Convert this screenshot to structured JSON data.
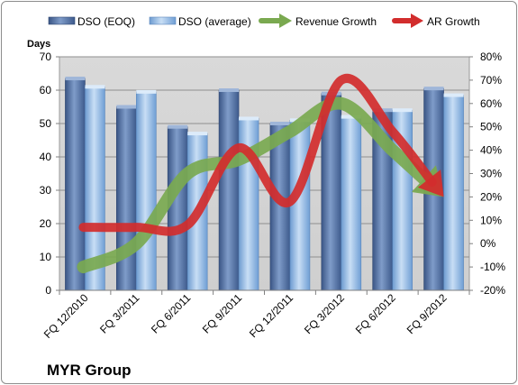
{
  "chart_data": {
    "type": "bar",
    "title": "",
    "company": "MYR Group",
    "ylabel": "Days",
    "categories": [
      "FQ 12/2010",
      "FQ 3/2011",
      "FQ 6/2011",
      "FQ 9/2011",
      "FQ 12/2011",
      "FQ 3/2012",
      "FQ 6/2012",
      "FQ 9/2012"
    ],
    "ylim": [
      0,
      70
    ],
    "yticks": [
      0,
      10,
      20,
      30,
      40,
      50,
      60,
      70
    ],
    "y2lim": [
      -0.2,
      0.8
    ],
    "y2ticks": [
      "-20%",
      "-10%",
      "0%",
      "10%",
      "20%",
      "30%",
      "40%",
      "50%",
      "60%",
      "70%",
      "80%"
    ],
    "series": [
      {
        "name": "DSO (EOQ)",
        "kind": "bar",
        "axis": "left",
        "color": "#4f6fa3",
        "values": [
          63.5,
          55,
          49,
          60,
          50,
          59,
          54,
          60.5
        ]
      },
      {
        "name": "DSO (average)",
        "kind": "bar",
        "axis": "left",
        "color": "#8fb6e6",
        "values": [
          61,
          59.5,
          47,
          51.5,
          51,
          52,
          54,
          58.5
        ]
      },
      {
        "name": "Revenue Growth",
        "kind": "arrow-line",
        "axis": "right",
        "color": "#7aa950",
        "values": [
          -0.1,
          0.0,
          0.3,
          0.36,
          0.48,
          0.6,
          0.4,
          0.2
        ]
      },
      {
        "name": "AR Growth",
        "kind": "arrow-line",
        "axis": "right",
        "color": "#d22d2d",
        "values": [
          0.07,
          0.07,
          0.08,
          0.41,
          0.18,
          0.7,
          0.48,
          0.2
        ]
      }
    ],
    "legend_position": "top",
    "grid": true,
    "plot_background": "#d4d4d4"
  }
}
